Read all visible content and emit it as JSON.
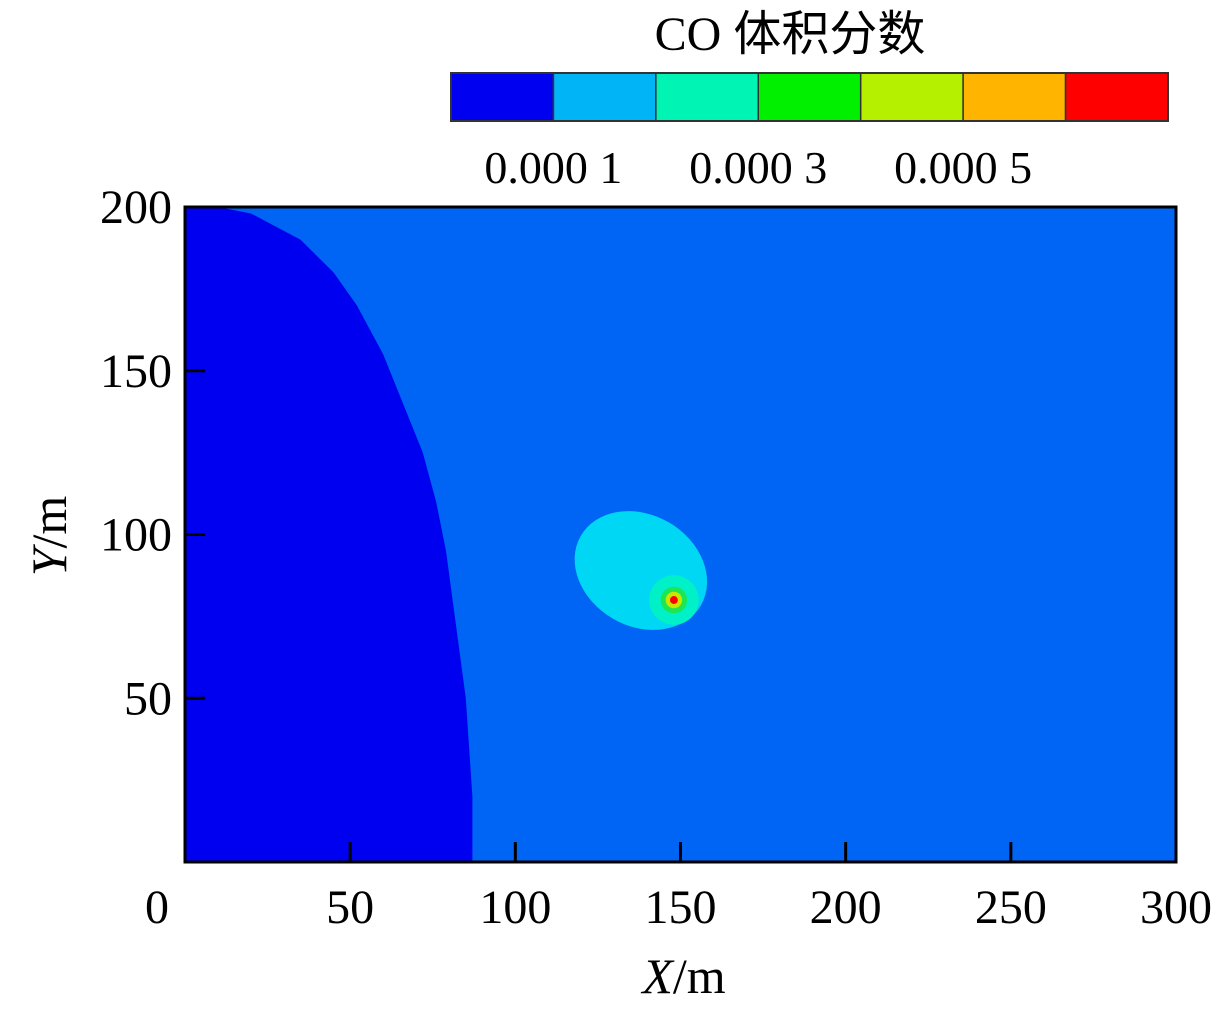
{
  "chart_data": {
    "type": "heatmap",
    "title": "CO 体积分数",
    "xlabel_var": "X",
    "xlabel_unit": "/m",
    "ylabel_var": "Y",
    "ylabel_unit": "/m",
    "xlim": [
      0,
      300
    ],
    "ylim": [
      0,
      200
    ],
    "x_ticks": [
      0,
      50,
      100,
      150,
      200,
      250,
      300
    ],
    "y_ticks": [
      50,
      100,
      150,
      200
    ],
    "x_tick_labels": [
      "0",
      "50",
      "100",
      "150",
      "200",
      "250",
      "300"
    ],
    "y_tick_labels": [
      "50",
      "100",
      "150",
      "200"
    ],
    "grid": false,
    "colorbar": {
      "placement": "top",
      "colors": [
        "#0000f0",
        "#00b4f5",
        "#00f5b4",
        "#00f000",
        "#b4f000",
        "#ffb400",
        "#ff0000"
      ],
      "labels": [
        "0.000 1",
        "0.000 3",
        "0.000 5"
      ],
      "label_values": [
        0.0001,
        0.0003,
        0.0005
      ],
      "levels": [
        0,
        0.0001,
        0.0002,
        0.0003,
        0.0004,
        0.0005,
        0.0006,
        0.0007
      ]
    },
    "field": {
      "background_color": "#0064f5",
      "low_region": {
        "color": "#0000f0",
        "boundary": [
          [
            0,
            200
          ],
          [
            10,
            200
          ],
          [
            20,
            198
          ],
          [
            35,
            190
          ],
          [
            45,
            180
          ],
          [
            52,
            170
          ],
          [
            60,
            155
          ],
          [
            66,
            140
          ],
          [
            72,
            125
          ],
          [
            76,
            110
          ],
          [
            79,
            95
          ],
          [
            81,
            80
          ],
          [
            83,
            65
          ],
          [
            85,
            50
          ],
          [
            86,
            35
          ],
          [
            87,
            20
          ],
          [
            87,
            0
          ],
          [
            0,
            0
          ]
        ]
      },
      "source": {
        "x": 148,
        "y": 80,
        "plume": {
          "color": "#00d7f5",
          "cx": 138,
          "cy": 89,
          "rx": 21,
          "ry": 17,
          "rotation_deg": 30
        },
        "core_rings": [
          {
            "color": "#00f0c8",
            "r": 7.5
          },
          {
            "color": "#1ee650",
            "r": 4
          },
          {
            "color": "#c8e600",
            "r": 2.5
          },
          {
            "color": "#ff0000",
            "r": 1.2
          }
        ]
      }
    }
  }
}
